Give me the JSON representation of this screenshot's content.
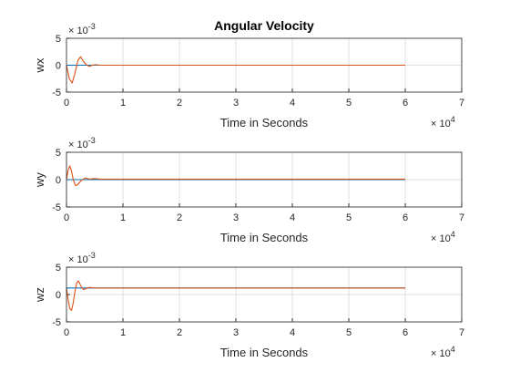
{
  "chart_data": [
    {
      "type": "line",
      "title": "Angular Velocity",
      "xlabel": "Time in Seconds",
      "ylabel": "wx",
      "xlim": [
        0,
        70000
      ],
      "ylim": [
        -0.005,
        0.005
      ],
      "x_ticks": [
        "0",
        "1",
        "2",
        "3",
        "4",
        "5",
        "6",
        "7"
      ],
      "y_ticks": [
        "-5",
        "0",
        "5"
      ],
      "x_multiplier": "× 10",
      "x_exponent": "4",
      "y_multiplier": "× 10",
      "y_exponent": "-3",
      "grid": true,
      "series": [
        {
          "color": "#0072BD",
          "x": [
            0,
            60000
          ],
          "y": [
            0.0,
            0.0
          ]
        },
        {
          "color": "#D95319",
          "x": [
            0,
            500,
            1000,
            1500,
            2000,
            2500,
            3000,
            3500,
            4000,
            5000,
            6000,
            8000,
            10000,
            20000,
            30000,
            40000,
            50000,
            60000
          ],
          "y": [
            0.0,
            -0.0025,
            -0.0033,
            -0.0015,
            0.0008,
            0.0016,
            0.0007,
            0.0001,
            -0.0002,
            0.0001,
            0.0,
            0.0,
            0.0,
            0.0,
            0.0,
            0.0,
            0.0,
            0.0
          ]
        }
      ]
    },
    {
      "type": "line",
      "title": "",
      "xlabel": "Time in Seconds",
      "ylabel": "wy",
      "xlim": [
        0,
        70000
      ],
      "ylim": [
        -0.005,
        0.005
      ],
      "x_ticks": [
        "0",
        "1",
        "2",
        "3",
        "4",
        "5",
        "6",
        "7"
      ],
      "y_ticks": [
        "-5",
        "0",
        "5"
      ],
      "x_multiplier": "× 10",
      "x_exponent": "4",
      "y_multiplier": "× 10",
      "y_exponent": "-3",
      "grid": true,
      "series": [
        {
          "color": "#0072BD",
          "x": [
            0,
            60000
          ],
          "y": [
            0.0,
            0.0
          ]
        },
        {
          "color": "#D95319",
          "x": [
            0,
            300,
            600,
            900,
            1200,
            1600,
            2000,
            2400,
            2800,
            3400,
            4000,
            5000,
            6000,
            8000,
            10000,
            20000,
            30000,
            40000,
            50000,
            60000
          ],
          "y": [
            0.0,
            0.0018,
            0.0025,
            0.0015,
            0.0,
            -0.0011,
            -0.0009,
            -0.0004,
            0.0,
            0.0003,
            0.0001,
            0.0002,
            0.0001,
            0.0001,
            0.0001,
            0.0001,
            0.0001,
            0.0001,
            0.0001,
            0.0001
          ]
        }
      ]
    },
    {
      "type": "line",
      "title": "",
      "xlabel": "Time in Seconds",
      "ylabel": "wz",
      "xlim": [
        0,
        70000
      ],
      "ylim": [
        -0.005,
        0.005
      ],
      "x_ticks": [
        "0",
        "1",
        "2",
        "3",
        "4",
        "5",
        "6",
        "7"
      ],
      "y_ticks": [
        "-5",
        "0",
        "5"
      ],
      "x_multiplier": "× 10",
      "x_exponent": "4",
      "y_multiplier": "× 10",
      "y_exponent": "-3",
      "grid": true,
      "series": [
        {
          "color": "#0072BD",
          "x": [
            0,
            6000,
            60000
          ],
          "y": [
            0.0012,
            0.0012,
            0.0012
          ]
        },
        {
          "color": "#D95319",
          "x": [
            0,
            300,
            600,
            900,
            1200,
            1500,
            1800,
            2100,
            2400,
            2700,
            3000,
            3500,
            4000,
            5000,
            6000,
            10000,
            20000,
            30000,
            40000,
            50000,
            60000
          ],
          "y": [
            0.0012,
            -0.001,
            -0.0026,
            -0.0029,
            -0.0015,
            0.0005,
            0.0021,
            0.0025,
            0.0019,
            0.0013,
            0.0009,
            0.0011,
            0.0013,
            0.0012,
            0.0012,
            0.0012,
            0.0012,
            0.0012,
            0.0012,
            0.0012,
            0.0012
          ]
        }
      ]
    }
  ]
}
